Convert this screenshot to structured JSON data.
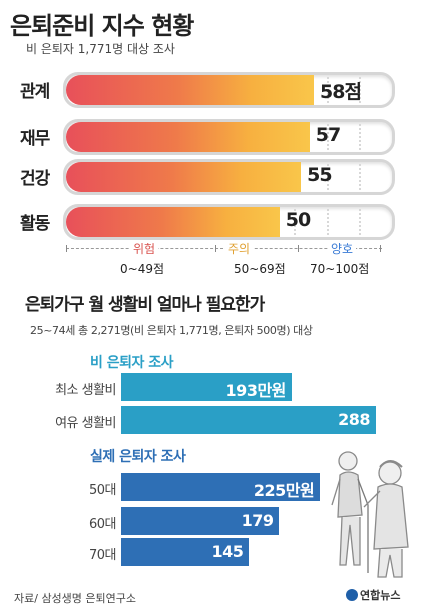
{
  "section1": {
    "title": "은퇴준비 지수 현황",
    "subtitle": "비 은퇴자 1,771명 대상 조사"
  },
  "section2": {
    "title": "은퇴가구 월 생활비 얼마나 필요한가",
    "subtitle": "25~74세 총 2,271명(비 은퇴자 1,771명, 은퇴자 500명) 대상"
  },
  "zones": [
    {
      "name": "위험",
      "range": "0~49점",
      "color": "#d9534f"
    },
    {
      "name": "주의",
      "range": "50~69점",
      "color": "#e0a030"
    },
    {
      "name": "양호",
      "range": "70~100점",
      "color": "#3a7bd5"
    }
  ],
  "colors": {
    "fill_start": "#e8505a",
    "fill_end": "#f9c64a",
    "bar_nonretiree": "#2a9fc6",
    "bar_retiree": "#2e6fb5",
    "head_nonretiree": "#2a9fc6",
    "head_retiree": "#2e6fb5"
  },
  "chart_data": [
    {
      "type": "bar",
      "title": "은퇴준비 지수 현황",
      "categories": [
        "관계",
        "재무",
        "건강",
        "활동"
      ],
      "values": [
        58,
        57,
        55,
        50
      ],
      "value_labels": [
        "58점",
        "57",
        "55",
        "50"
      ],
      "xlim": [
        0,
        100
      ]
    },
    {
      "type": "bar",
      "title": "은퇴가구 월 생활비 얼마나 필요한가",
      "groups": [
        {
          "name": "비 은퇴자 조사",
          "categories": [
            "최소 생활비",
            "여유 생활비"
          ],
          "values": [
            193,
            288
          ],
          "value_labels": [
            "193만원",
            "288"
          ]
        },
        {
          "name": "실제 은퇴자 조사",
          "categories": [
            "50대",
            "60대",
            "70대"
          ],
          "values": [
            225,
            179,
            145
          ],
          "value_labels": [
            "225만원",
            "179",
            "145"
          ]
        }
      ],
      "unit": "만원"
    }
  ],
  "footer": {
    "source": "자료/ 삼성생명 은퇴연구소",
    "logo": "연합뉴스"
  }
}
